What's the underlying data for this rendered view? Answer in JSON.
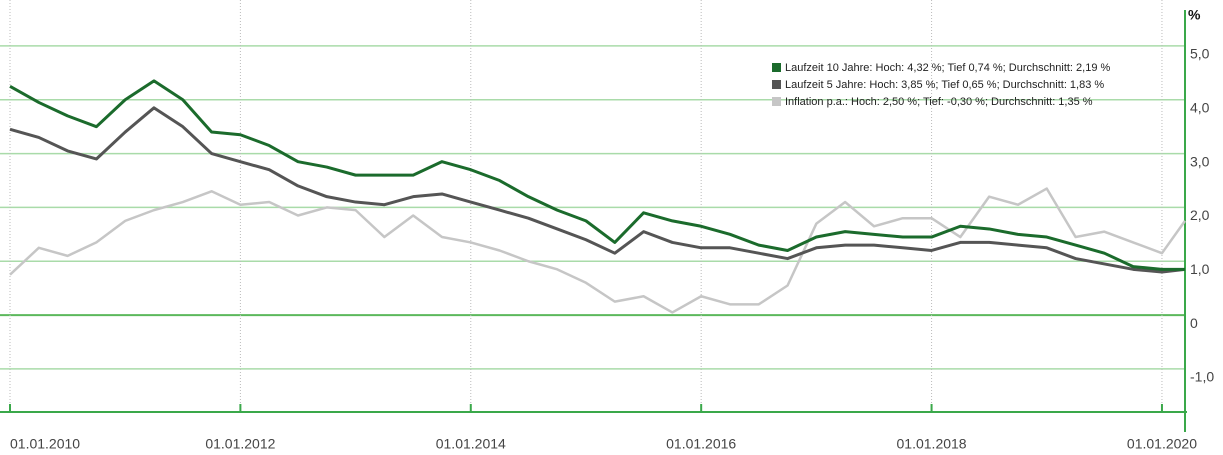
{
  "chart_data": {
    "type": "line",
    "y_label": "%",
    "x": [
      2010,
      2010.25,
      2010.5,
      2010.75,
      2011,
      2011.25,
      2011.5,
      2011.75,
      2012,
      2012.25,
      2012.5,
      2012.75,
      2013,
      2013.25,
      2013.5,
      2013.75,
      2014,
      2014.25,
      2014.5,
      2014.75,
      2015,
      2015.25,
      2015.5,
      2015.75,
      2016,
      2016.25,
      2016.5,
      2016.75,
      2017,
      2017.25,
      2017.5,
      2017.75,
      2018,
      2018.25,
      2018.5,
      2018.75,
      2019,
      2019.25,
      2019.5,
      2019.75,
      2020,
      2020.2
    ],
    "series": [
      {
        "name": "Laufzeit 10 Jahre: Hoch: 4,32 %; Tief 0,74 %; Durchschnitt: 2,19 %",
        "color": "#1b6b2c",
        "values": [
          4.25,
          3.95,
          3.7,
          3.5,
          4.0,
          4.35,
          4.0,
          3.4,
          3.35,
          3.15,
          2.85,
          2.75,
          2.6,
          2.6,
          2.6,
          2.85,
          2.7,
          2.5,
          2.2,
          1.95,
          1.75,
          1.35,
          1.9,
          1.75,
          1.65,
          1.5,
          1.3,
          1.2,
          1.45,
          1.55,
          1.5,
          1.45,
          1.45,
          1.65,
          1.6,
          1.5,
          1.45,
          1.3,
          1.15,
          0.9,
          0.85,
          0.85
        ]
      },
      {
        "name": "Laufzeit 5 Jahre: Hoch: 3,85 %; Tief 0,65 %; Durchschnitt: 1,83 %",
        "color": "#555555",
        "values": [
          3.45,
          3.3,
          3.05,
          2.9,
          3.4,
          3.85,
          3.5,
          3.0,
          2.85,
          2.7,
          2.4,
          2.2,
          2.1,
          2.05,
          2.2,
          2.25,
          2.1,
          1.95,
          1.8,
          1.6,
          1.4,
          1.15,
          1.55,
          1.35,
          1.25,
          1.25,
          1.15,
          1.05,
          1.25,
          1.3,
          1.3,
          1.25,
          1.2,
          1.35,
          1.35,
          1.3,
          1.25,
          1.05,
          0.95,
          0.85,
          0.8,
          0.85
        ]
      },
      {
        "name": "Inflation p.a.: Hoch: 2,50 %; Tief: -0,30 %; Durchschnitt: 1,35 %",
        "color": "#c6c6c6",
        "values": [
          0.75,
          1.25,
          1.1,
          1.35,
          1.75,
          1.95,
          2.1,
          2.3,
          2.05,
          2.1,
          1.85,
          2.0,
          1.95,
          1.45,
          1.85,
          1.45,
          1.35,
          1.2,
          1.0,
          0.85,
          0.6,
          0.25,
          0.35,
          0.05,
          0.35,
          0.2,
          0.2,
          0.55,
          1.7,
          2.1,
          1.65,
          1.8,
          1.8,
          1.45,
          2.2,
          2.05,
          2.35,
          1.45,
          1.55,
          1.35,
          1.15,
          1.75
        ]
      }
    ],
    "xlim": [
      2010,
      2020.2
    ],
    "xticks": [
      {
        "value": 2010,
        "label": "01.01.2010"
      },
      {
        "value": 2012,
        "label": "01.01.2012"
      },
      {
        "value": 2014,
        "label": "01.01.2014"
      },
      {
        "value": 2016,
        "label": "01.01.2016"
      },
      {
        "value": 2018,
        "label": "01.01.2018"
      },
      {
        "value": 2020,
        "label": "01.01.2020"
      }
    ],
    "ylim": [
      -1.8,
      5.5
    ],
    "yticks": [
      {
        "value": 5,
        "label": "5,0"
      },
      {
        "value": 4,
        "label": "4,0"
      },
      {
        "value": 3,
        "label": "3,0"
      },
      {
        "value": 2,
        "label": "2,0"
      },
      {
        "value": 1,
        "label": "1,0"
      },
      0,
      {
        "value": -1,
        "label": "-1,0"
      }
    ],
    "grid": true,
    "legend": "upper right"
  }
}
